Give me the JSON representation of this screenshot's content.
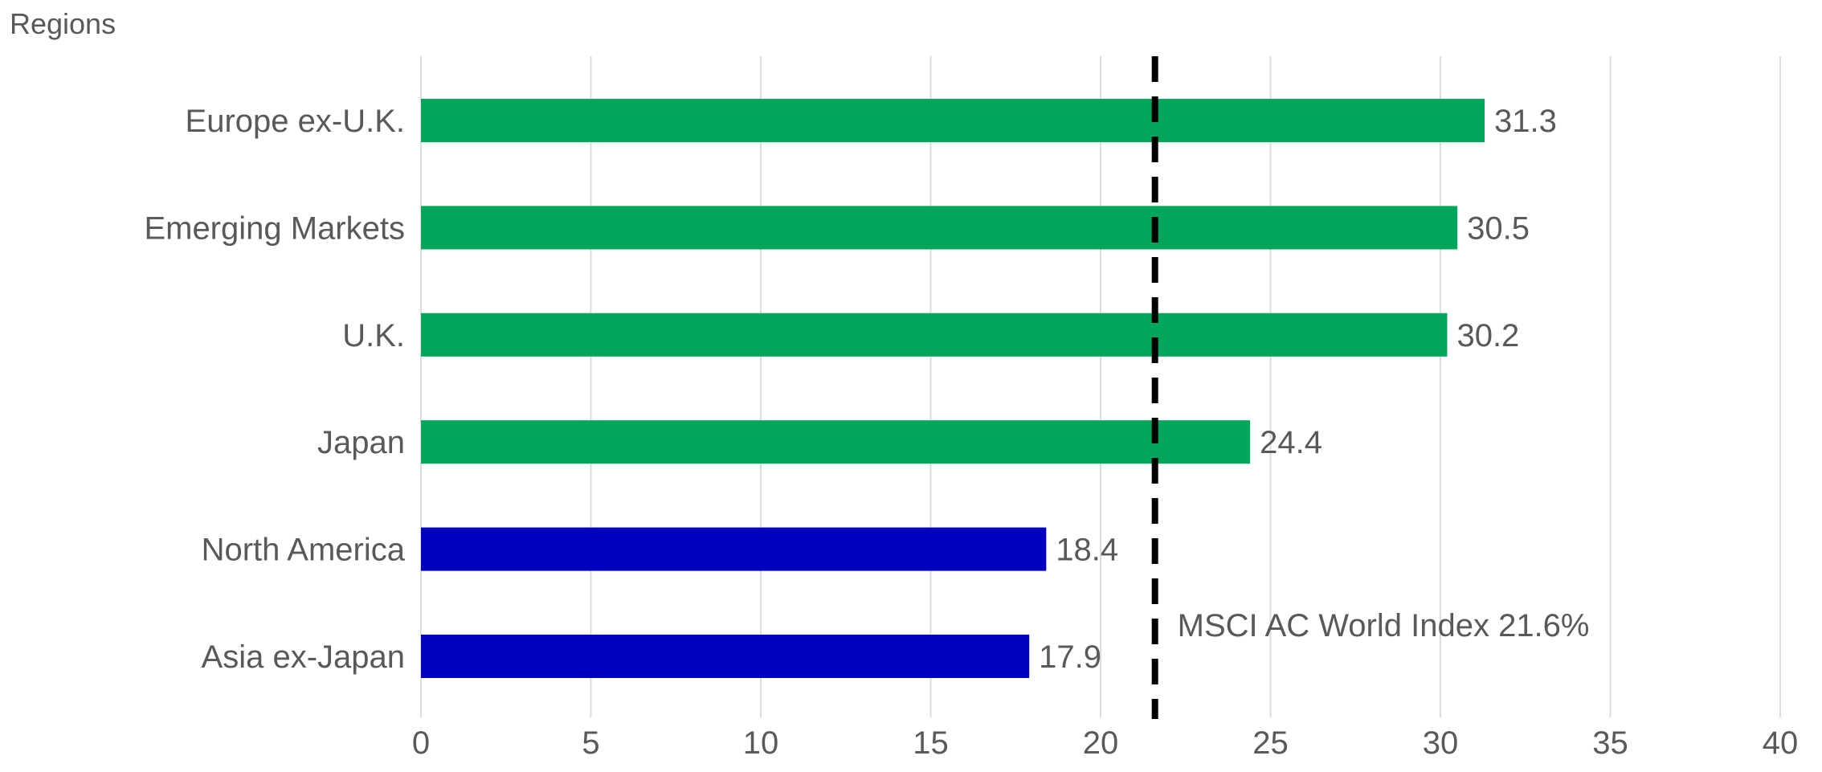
{
  "chart_data": {
    "type": "bar",
    "orientation": "horizontal",
    "title": "Regions",
    "categories": [
      "Europe ex-U.K.",
      "Emerging Markets",
      "U.K.",
      "Japan",
      "North America",
      "Asia ex-Japan"
    ],
    "values": [
      31.3,
      30.5,
      30.2,
      24.4,
      18.4,
      17.9
    ],
    "bar_colors": [
      "#00a65a",
      "#00a65a",
      "#00a65a",
      "#00a65a",
      "#0000bf",
      "#0000bf"
    ],
    "value_labels": [
      "31.3",
      "30.5",
      "30.2",
      "24.4",
      "18.4",
      "17.9"
    ],
    "xlim": [
      0,
      40
    ],
    "xticks": [
      0,
      5,
      10,
      15,
      20,
      25,
      30,
      35,
      40
    ],
    "grid": true,
    "reference_line": {
      "value": 21.6,
      "label": "MSCI AC World Index 21.6%",
      "color": "#000000",
      "style": "dashed"
    }
  }
}
